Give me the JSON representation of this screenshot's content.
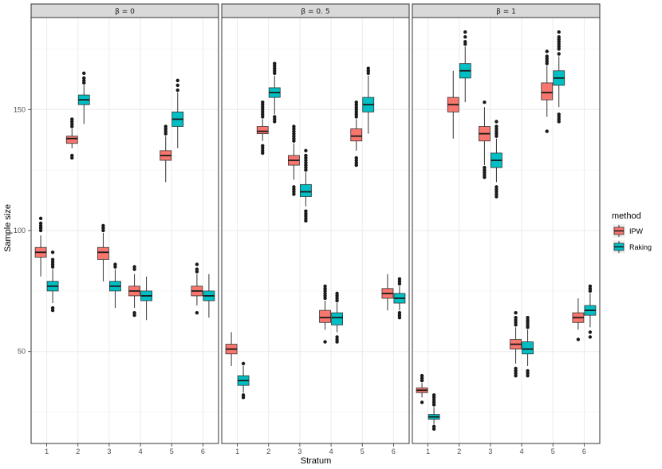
{
  "chart_data": {
    "type": "boxplot",
    "xlabel": "Stratum",
    "ylabel": "Sample size",
    "ylim": [
      12,
      188
    ],
    "yticks": [
      50,
      100,
      150
    ],
    "categories": [
      "1",
      "2",
      "3",
      "4",
      "5",
      "6"
    ],
    "legend": {
      "title": "method",
      "position": "right",
      "entries": [
        {
          "name": "IPW",
          "color": "#F8766D"
        },
        {
          "name": "Raking",
          "color": "#00BFC4"
        }
      ]
    },
    "panels": [
      {
        "label": "β = 0",
        "boxes": [
          {
            "stratum": "1",
            "method": "IPW",
            "min": 81,
            "q1": 89,
            "median": 91,
            "q3": 93,
            "max": 98,
            "outliers": [
              100,
              101,
              102,
              103,
              105
            ]
          },
          {
            "stratum": "1",
            "method": "Raking",
            "min": 70,
            "q1": 75,
            "median": 77,
            "q3": 79,
            "max": 84,
            "outliers": [
              67,
              68,
              85,
              86,
              87,
              88,
              91
            ]
          },
          {
            "stratum": "2",
            "method": "IPW",
            "min": 134,
            "q1": 136,
            "median": 138,
            "q3": 139,
            "max": 142,
            "outliers": [
              130,
              131,
              143,
              144,
              145,
              146
            ]
          },
          {
            "stratum": "2",
            "method": "Raking",
            "min": 144,
            "q1": 152,
            "median": 154,
            "q3": 156,
            "max": 160,
            "outliers": [
              161,
              162,
              163,
              165
            ]
          },
          {
            "stratum": "3",
            "method": "IPW",
            "min": 79,
            "q1": 88,
            "median": 91,
            "q3": 93,
            "max": 99,
            "outliers": [
              100,
              101,
              102
            ]
          },
          {
            "stratum": "3",
            "method": "Raking",
            "min": 68,
            "q1": 75,
            "median": 77,
            "q3": 79,
            "max": 84,
            "outliers": [
              85,
              86
            ]
          },
          {
            "stratum": "4",
            "method": "IPW",
            "min": 68,
            "q1": 73,
            "median": 75,
            "q3": 77,
            "max": 82,
            "outliers": [
              65,
              66,
              84,
              85
            ]
          },
          {
            "stratum": "4",
            "method": "Raking",
            "min": 63,
            "q1": 71,
            "median": 73,
            "q3": 75,
            "max": 81,
            "outliers": []
          },
          {
            "stratum": "5",
            "method": "IPW",
            "min": 120,
            "q1": 129,
            "median": 131,
            "q3": 133,
            "max": 139,
            "outliers": [
              140,
              141,
              142,
              143
            ]
          },
          {
            "stratum": "5",
            "method": "Raking",
            "min": 134,
            "q1": 143,
            "median": 146,
            "q3": 149,
            "max": 157,
            "outliers": [
              158,
              160,
              162
            ]
          },
          {
            "stratum": "6",
            "method": "IPW",
            "min": 69,
            "q1": 73,
            "median": 75,
            "q3": 77,
            "max": 82,
            "outliers": [
              66,
              83,
              84,
              86
            ]
          },
          {
            "stratum": "6",
            "method": "Raking",
            "min": 64,
            "q1": 71,
            "median": 73,
            "q3": 75,
            "max": 82,
            "outliers": []
          }
        ]
      },
      {
        "label": "β = 0. 5",
        "boxes": [
          {
            "stratum": "1",
            "method": "IPW",
            "min": 44,
            "q1": 49,
            "median": 51,
            "q3": 53,
            "max": 58,
            "outliers": []
          },
          {
            "stratum": "1",
            "method": "Raking",
            "min": 33,
            "q1": 36,
            "median": 38,
            "q3": 40,
            "max": 44,
            "outliers": [
              31,
              32,
              45
            ]
          },
          {
            "stratum": "2",
            "method": "IPW",
            "min": 137,
            "q1": 140,
            "median": 141,
            "q3": 143,
            "max": 146,
            "outliers": [
              132,
              133,
              134,
              135,
              147,
              148,
              149,
              150,
              151,
              152,
              153
            ]
          },
          {
            "stratum": "2",
            "method": "Raking",
            "min": 148,
            "q1": 155,
            "median": 157,
            "q3": 159,
            "max": 164,
            "outliers": [
              145,
              146,
              147,
              165,
              166,
              167,
              168,
              169
            ]
          },
          {
            "stratum": "3",
            "method": "IPW",
            "min": 121,
            "q1": 127,
            "median": 129,
            "q3": 131,
            "max": 136,
            "outliers": [
              115,
              116,
              117,
              118,
              137,
              138,
              139,
              140,
              141,
              142,
              143
            ]
          },
          {
            "stratum": "3",
            "method": "Raking",
            "min": 110,
            "q1": 114,
            "median": 116,
            "q3": 119,
            "max": 124,
            "outliers": [
              104,
              105,
              106,
              107,
              108,
              125,
              126,
              127,
              128,
              129,
              130,
              131,
              133
            ]
          },
          {
            "stratum": "4",
            "method": "IPW",
            "min": 59,
            "q1": 62,
            "median": 64,
            "q3": 67,
            "max": 71,
            "outliers": [
              54,
              72,
              73,
              74,
              75,
              76,
              77
            ]
          },
          {
            "stratum": "4",
            "method": "Raking",
            "min": 58,
            "q1": 61,
            "median": 64,
            "q3": 66,
            "max": 70,
            "outliers": [
              54,
              55,
              56,
              71,
              72,
              73,
              74
            ]
          },
          {
            "stratum": "5",
            "method": "IPW",
            "min": 133,
            "q1": 137,
            "median": 139,
            "q3": 142,
            "max": 146,
            "outliers": [
              127,
              128,
              129,
              130,
              147,
              148,
              149,
              150,
              151,
              152,
              153
            ]
          },
          {
            "stratum": "5",
            "method": "Raking",
            "min": 140,
            "q1": 149,
            "median": 152,
            "q3": 155,
            "max": 164,
            "outliers": [
              165,
              166,
              167
            ]
          },
          {
            "stratum": "6",
            "method": "IPW",
            "min": 67,
            "q1": 72,
            "median": 74,
            "q3": 76,
            "max": 82,
            "outliers": []
          },
          {
            "stratum": "6",
            "method": "Raking",
            "min": 67,
            "q1": 70,
            "median": 72,
            "q3": 74,
            "max": 77,
            "outliers": [
              64,
              65,
              66,
              78,
              79,
              80
            ]
          }
        ]
      },
      {
        "label": "β = 1",
        "boxes": [
          {
            "stratum": "1",
            "method": "IPW",
            "min": 31,
            "q1": 33,
            "median": 34,
            "q3": 35,
            "max": 37,
            "outliers": [
              29,
              38,
              39,
              40
            ]
          },
          {
            "stratum": "1",
            "method": "Raking",
            "min": 20,
            "q1": 22,
            "median": 23,
            "q3": 24,
            "max": 27,
            "outliers": [
              18,
              19,
              28,
              29,
              30,
              31,
              32
            ]
          },
          {
            "stratum": "2",
            "method": "IPW",
            "min": 138,
            "q1": 149,
            "median": 152,
            "q3": 155,
            "max": 166,
            "outliers": []
          },
          {
            "stratum": "2",
            "method": "Raking",
            "min": 153,
            "q1": 163,
            "median": 166,
            "q3": 169,
            "max": 176,
            "outliers": [
              177,
              178,
              180,
              182
            ]
          },
          {
            "stratum": "3",
            "method": "IPW",
            "min": 127,
            "q1": 137,
            "median": 140,
            "q3": 143,
            "max": 151,
            "outliers": [
              122,
              123,
              124,
              125,
              126,
              153
            ]
          },
          {
            "stratum": "3",
            "method": "Raking",
            "min": 120,
            "q1": 126,
            "median": 129,
            "q3": 132,
            "max": 138,
            "outliers": [
              114,
              115,
              116,
              117,
              118,
              139,
              140,
              141,
              142,
              143,
              145
            ]
          },
          {
            "stratum": "4",
            "method": "IPW",
            "min": 45,
            "q1": 51,
            "median": 53,
            "q3": 55,
            "max": 60,
            "outliers": [
              40,
              41,
              42,
              43,
              61,
              62,
              63,
              64,
              66
            ]
          },
          {
            "stratum": "4",
            "method": "Raking",
            "min": 44,
            "q1": 49,
            "median": 51,
            "q3": 54,
            "max": 59,
            "outliers": [
              40,
              41,
              42,
              60,
              61,
              62,
              63,
              64
            ]
          },
          {
            "stratum": "5",
            "method": "IPW",
            "min": 147,
            "q1": 154,
            "median": 157,
            "q3": 161,
            "max": 168,
            "outliers": [
              141,
              169,
              170,
              171,
              172,
              174
            ]
          },
          {
            "stratum": "5",
            "method": "Raking",
            "min": 151,
            "q1": 160,
            "median": 163,
            "q3": 166,
            "max": 172,
            "outliers": [
              145,
              146,
              147,
              148,
              173,
              175,
              176,
              177,
              178,
              179,
              180,
              182
            ]
          },
          {
            "stratum": "6",
            "method": "IPW",
            "min": 59,
            "q1": 62,
            "median": 64,
            "q3": 66,
            "max": 72,
            "outliers": [
              55
            ]
          },
          {
            "stratum": "6",
            "method": "Raking",
            "min": 60,
            "q1": 65,
            "median": 67,
            "q3": 69,
            "max": 74,
            "outliers": [
              56,
              58,
              75,
              76,
              77
            ]
          }
        ]
      }
    ]
  }
}
